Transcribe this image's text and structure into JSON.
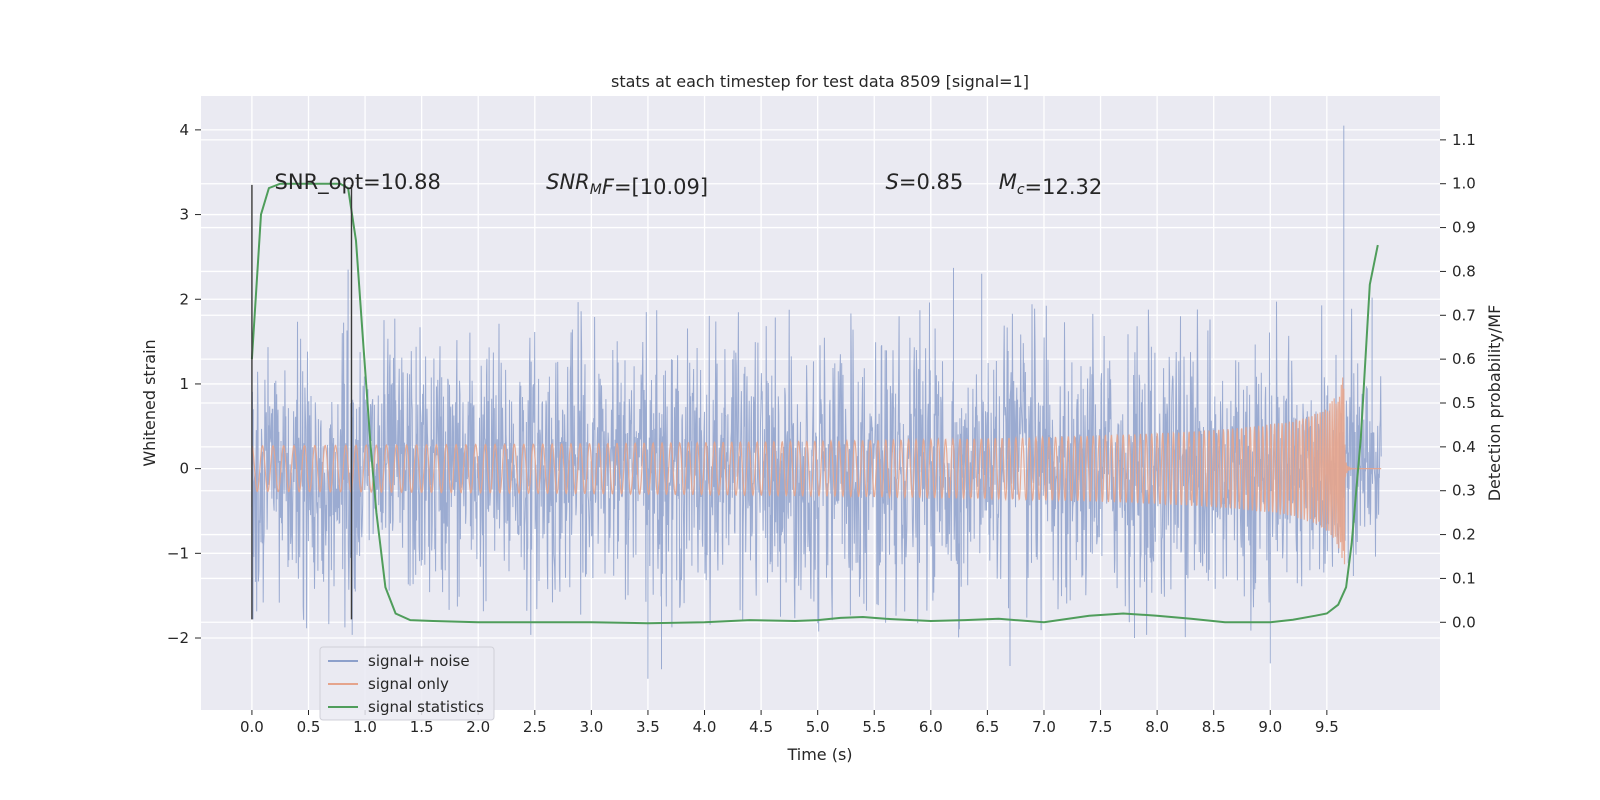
{
  "chart_data": {
    "type": "line",
    "title": "stats at each timestep for test data 8509 [signal=1]",
    "xlabel": "Time (s)",
    "ylabel": "Whitened strain",
    "y2label": "Detection probability/MF",
    "xlim": [
      -0.45,
      10.5
    ],
    "ylim": [
      -2.85,
      4.4
    ],
    "y2lim": [
      -0.2,
      1.2
    ],
    "xticks": [
      0.0,
      0.5,
      1.0,
      1.5,
      2.0,
      2.5,
      3.0,
      3.5,
      4.0,
      4.5,
      5.0,
      5.5,
      6.0,
      6.5,
      7.0,
      7.5,
      8.0,
      8.5,
      9.0,
      9.5
    ],
    "xtick_labels": [
      "0.0",
      "0.5",
      "1.0",
      "1.5",
      "2.0",
      "2.5",
      "3.0",
      "3.5",
      "4.0",
      "4.5",
      "5.0",
      "5.5",
      "6.0",
      "6.5",
      "7.0",
      "7.5",
      "8.0",
      "8.5",
      "9.0",
      "9.5"
    ],
    "yticks": [
      -2,
      -1,
      0,
      1,
      2,
      3,
      4
    ],
    "ytick_labels": [
      "−2",
      "−1",
      "0",
      "1",
      "2",
      "3",
      "4"
    ],
    "y2ticks": [
      0.0,
      0.1,
      0.2,
      0.3,
      0.4,
      0.5,
      0.6,
      0.7,
      0.8,
      0.9,
      1.0,
      1.1
    ],
    "y2tick_labels": [
      "0.0",
      "0.1",
      "0.2",
      "0.3",
      "0.4",
      "0.5",
      "0.6",
      "0.7",
      "0.8",
      "0.9",
      "1.0",
      "1.1"
    ],
    "grid": true,
    "legend_position": "lower-left",
    "annotations": [
      {
        "parts": [
          {
            "t": "SNR_opt=10.88",
            "italic": false
          }
        ],
        "x": 0.2,
        "y": 3.3
      },
      {
        "parts": [
          {
            "t": "SNR",
            "italic": true
          },
          {
            "t": "M",
            "italic": true,
            "sub": true
          },
          {
            "t": "F",
            "italic": true
          },
          {
            "t": "=[10.09]",
            "italic": false
          }
        ],
        "x": 2.6,
        "y": 3.3
      },
      {
        "parts": [
          {
            "t": "S",
            "italic": true
          },
          {
            "t": "=0.85",
            "italic": false
          }
        ],
        "x": 5.6,
        "y": 3.3
      },
      {
        "parts": [
          {
            "t": "M",
            "italic": true
          },
          {
            "t": "c",
            "italic": true,
            "sub": true
          },
          {
            "t": "=12.32",
            "italic": false
          }
        ],
        "x": 6.6,
        "y": 3.3
      }
    ],
    "vertical_lines": [
      {
        "x": 0.0,
        "ymin": -1.78,
        "ymax": 3.35
      },
      {
        "x": 0.88,
        "ymin": -1.78,
        "ymax": 3.35
      }
    ],
    "series": [
      {
        "name": "signal+ noise",
        "color": "#8da0cb",
        "axis": "left",
        "style": "noise",
        "x_range": [
          0.0,
          9.98
        ],
        "sigma": 0.75,
        "peaks": [
          {
            "x": 0.85,
            "y": 2.35
          },
          {
            "x": 0.01,
            "y": -1.78
          },
          {
            "x": 3.5,
            "y": -2.48
          },
          {
            "x": 3.62,
            "y": -2.37
          },
          {
            "x": 6.45,
            "y": 2.3
          },
          {
            "x": 6.2,
            "y": 2.37
          },
          {
            "x": 7.8,
            "y": -2.0
          },
          {
            "x": 6.7,
            "y": -2.33
          },
          {
            "x": 9.0,
            "y": -2.3
          },
          {
            "x": 9.65,
            "y": 4.05
          },
          {
            "x": 9.9,
            "y": 2.02
          }
        ]
      },
      {
        "name": "signal only",
        "color": "#e5a48c",
        "axis": "left",
        "style": "chirp",
        "x_range": [
          0.0,
          9.98
        ],
        "merger_time": 9.66,
        "peak_amplitude": 1.5
      },
      {
        "name": "signal statistics",
        "color": "#4f9d5b",
        "axis": "right",
        "style": "line",
        "x": [
          0.0,
          0.08,
          0.15,
          0.25,
          0.4,
          0.6,
          0.78,
          0.85,
          0.92,
          0.98,
          1.05,
          1.1,
          1.18,
          1.27,
          1.4,
          1.6,
          2.0,
          2.5,
          3.0,
          3.5,
          4.0,
          4.4,
          4.8,
          5.0,
          5.2,
          5.4,
          5.6,
          6.0,
          6.3,
          6.6,
          7.0,
          7.4,
          7.7,
          8.0,
          8.3,
          8.6,
          9.0,
          9.2,
          9.4,
          9.5,
          9.6,
          9.67,
          9.72,
          9.8,
          9.88,
          9.95
        ],
        "y": [
          0.6,
          0.93,
          0.99,
          1.0,
          1.0,
          1.0,
          1.0,
          0.99,
          0.87,
          0.65,
          0.4,
          0.25,
          0.08,
          0.02,
          0.005,
          0.003,
          0.0,
          0.0,
          0.0,
          -0.002,
          0.0,
          0.005,
          0.003,
          0.005,
          0.01,
          0.012,
          0.008,
          0.003,
          0.005,
          0.008,
          0.0,
          0.015,
          0.02,
          0.015,
          0.008,
          0.0,
          0.0,
          0.006,
          0.015,
          0.02,
          0.04,
          0.08,
          0.18,
          0.42,
          0.77,
          0.86
        ]
      }
    ]
  }
}
